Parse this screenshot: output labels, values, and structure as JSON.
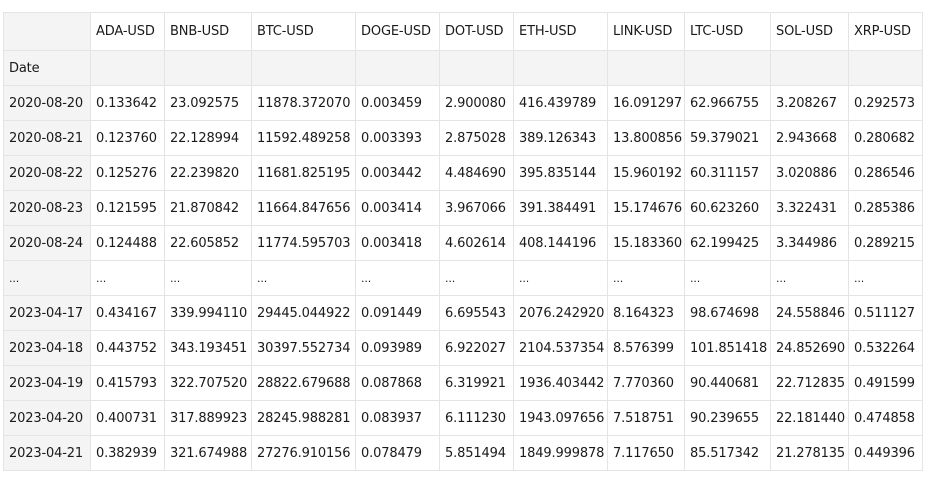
{
  "table": {
    "columns": [
      "ADA-USD",
      "BNB-USD",
      "BTC-USD",
      "DOGE-USD",
      "DOT-USD",
      "ETH-USD",
      "LINK-USD",
      "LTC-USD",
      "SOL-USD",
      "XRP-USD"
    ],
    "index_name": "Date",
    "rows": [
      {
        "index": "2020-08-20",
        "values": [
          "0.133642",
          "23.092575",
          "11878.372070",
          "0.003459",
          "2.900080",
          "416.439789",
          "16.091297",
          "62.966755",
          "3.208267",
          "0.292573"
        ]
      },
      {
        "index": "2020-08-21",
        "values": [
          "0.123760",
          "22.128994",
          "11592.489258",
          "0.003393",
          "2.875028",
          "389.126343",
          "13.800856",
          "59.379021",
          "2.943668",
          "0.280682"
        ]
      },
      {
        "index": "2020-08-22",
        "values": [
          "0.125276",
          "22.239820",
          "11681.825195",
          "0.003442",
          "4.484690",
          "395.835144",
          "15.960192",
          "60.311157",
          "3.020886",
          "0.286546"
        ]
      },
      {
        "index": "2020-08-23",
        "values": [
          "0.121595",
          "21.870842",
          "11664.847656",
          "0.003414",
          "3.967066",
          "391.384491",
          "15.174676",
          "60.623260",
          "3.322431",
          "0.285386"
        ]
      },
      {
        "index": "2020-08-24",
        "values": [
          "0.124488",
          "22.605852",
          "11774.595703",
          "0.003418",
          "4.602614",
          "408.144196",
          "15.183360",
          "62.199425",
          "3.344986",
          "0.289215"
        ]
      },
      {
        "index": "...",
        "values": [
          "...",
          "...",
          "...",
          "...",
          "...",
          "...",
          "...",
          "...",
          "...",
          "..."
        ]
      },
      {
        "index": "2023-04-17",
        "values": [
          "0.434167",
          "339.994110",
          "29445.044922",
          "0.091449",
          "6.695543",
          "2076.242920",
          "8.164323",
          "98.674698",
          "24.558846",
          "0.511127"
        ]
      },
      {
        "index": "2023-04-18",
        "values": [
          "0.443752",
          "343.193451",
          "30397.552734",
          "0.093989",
          "6.922027",
          "2104.537354",
          "8.576399",
          "101.851418",
          "24.852690",
          "0.532264"
        ]
      },
      {
        "index": "2023-04-19",
        "values": [
          "0.415793",
          "322.707520",
          "28822.679688",
          "0.087868",
          "6.319921",
          "1936.403442",
          "7.770360",
          "90.440681",
          "22.712835",
          "0.491599"
        ]
      },
      {
        "index": "2023-04-20",
        "values": [
          "0.400731",
          "317.889923",
          "28245.988281",
          "0.083937",
          "6.111230",
          "1943.097656",
          "7.518751",
          "90.239655",
          "22.181440",
          "0.474858"
        ]
      },
      {
        "index": "2023-04-21",
        "values": [
          "0.382939",
          "321.674988",
          "27276.910156",
          "0.078479",
          "5.851494",
          "1849.999878",
          "7.117650",
          "85.517342",
          "21.278135",
          "0.449396"
        ]
      }
    ]
  }
}
